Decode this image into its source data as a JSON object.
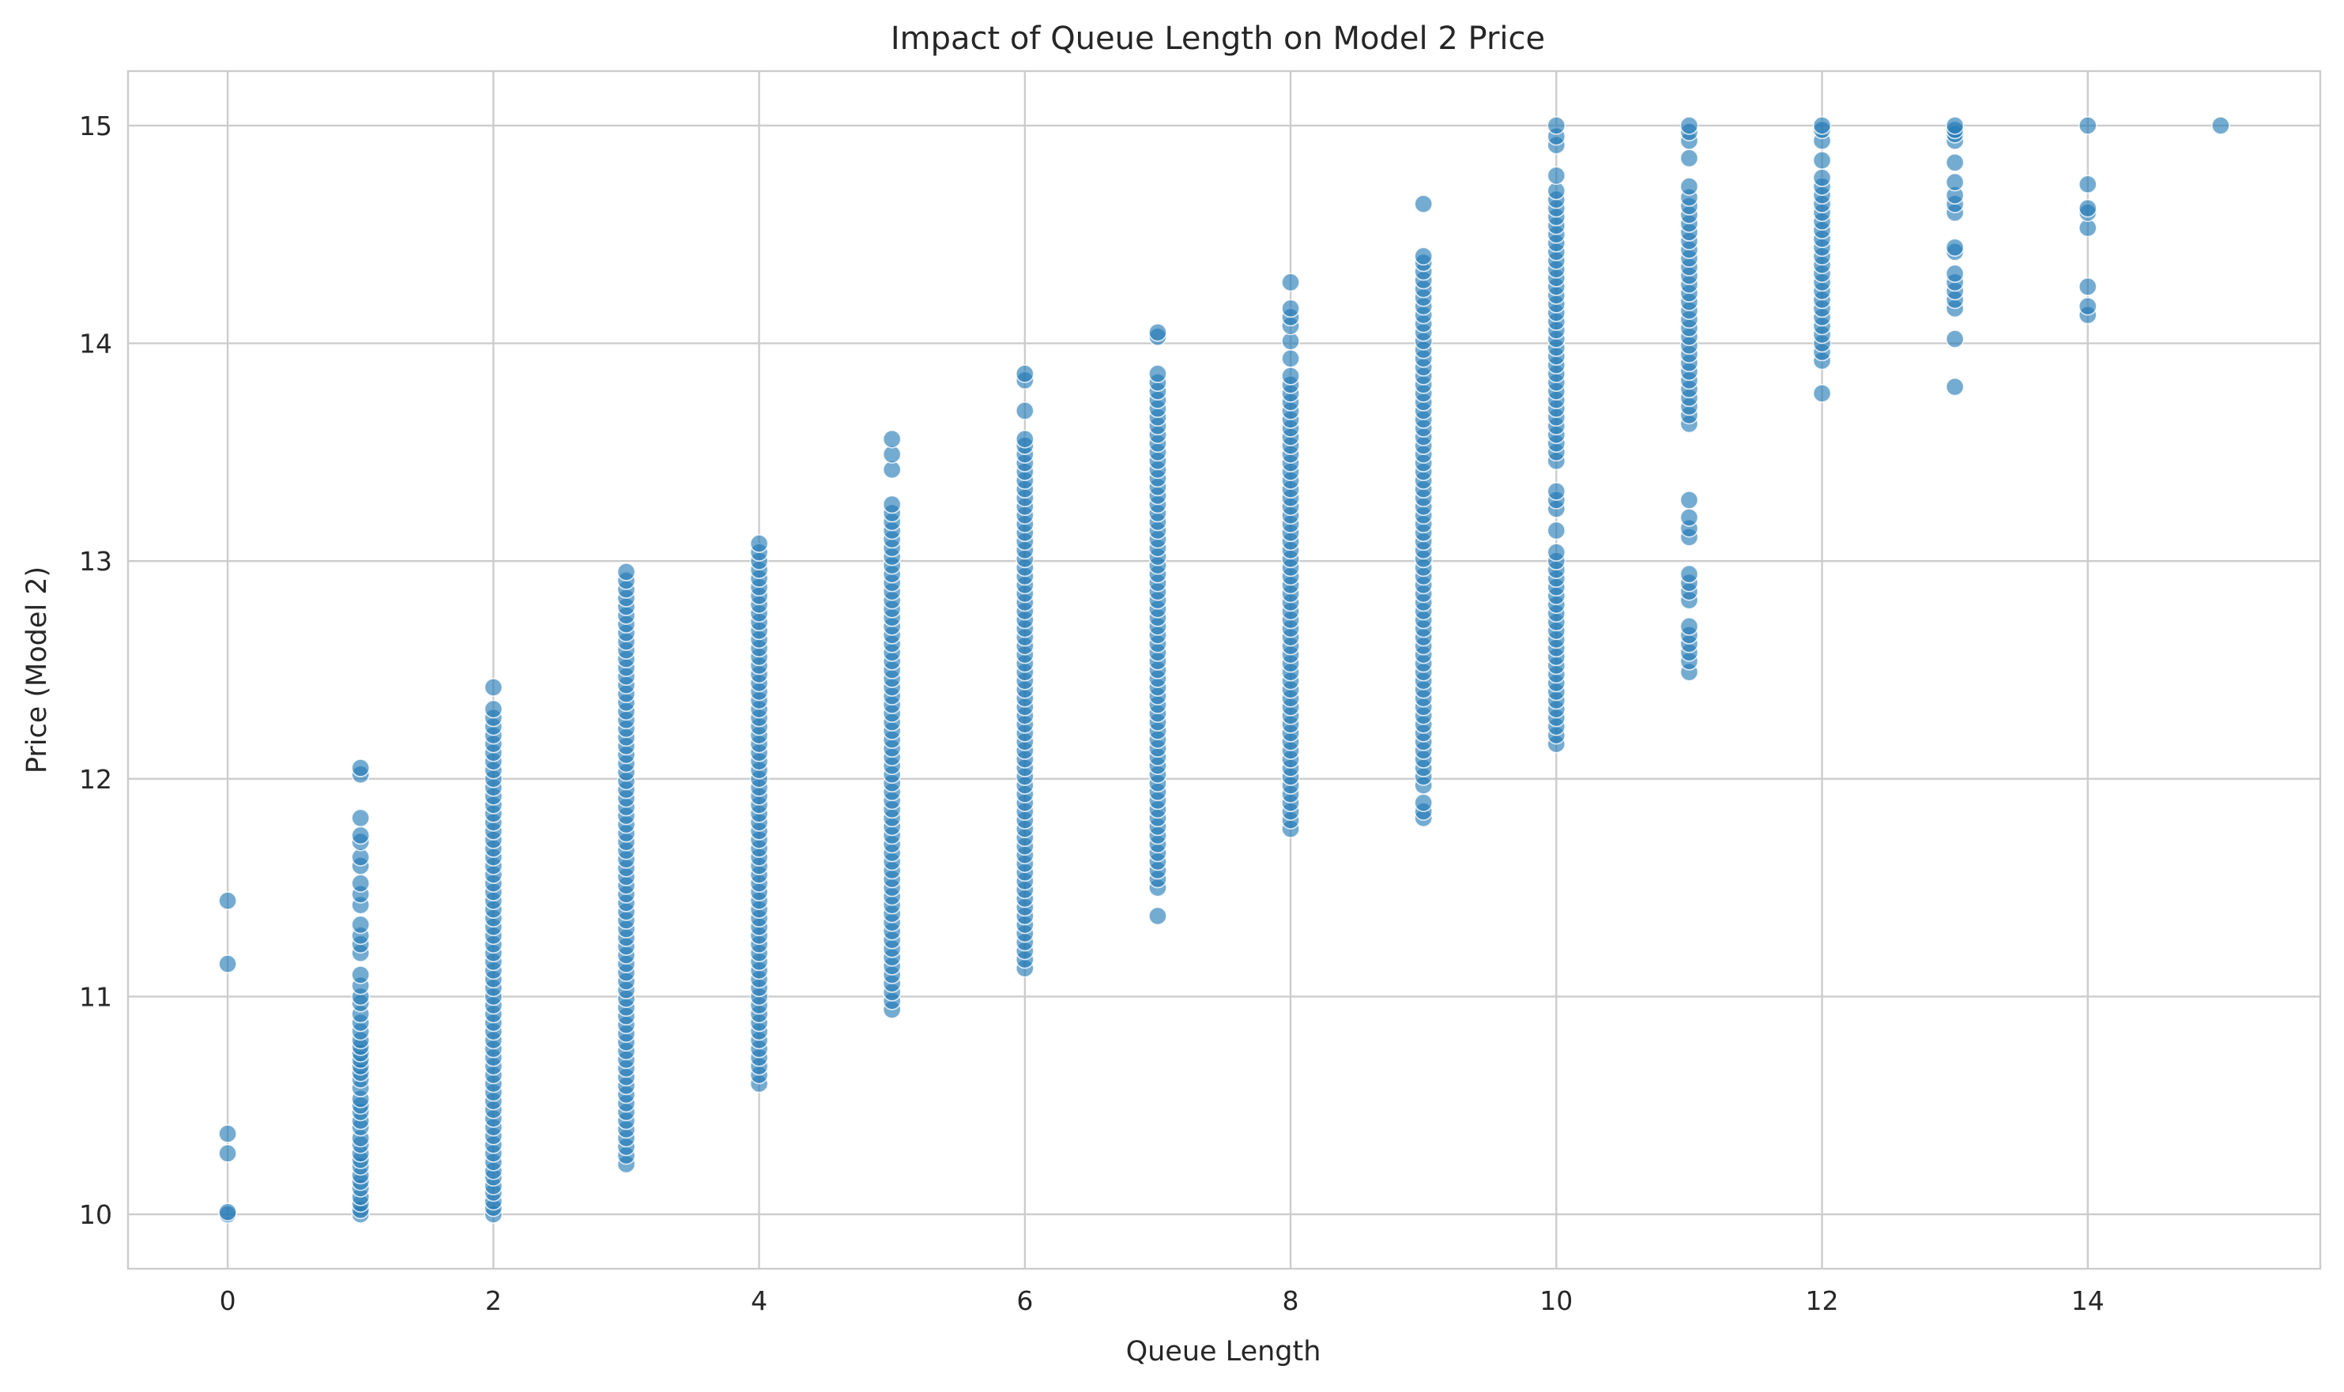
{
  "chart_data": {
    "type": "scatter",
    "title": "Impact of Queue Length on Model 2 Price",
    "xlabel": "Queue Length",
    "ylabel": "Price (Model 2)",
    "xlim": [
      -0.75,
      15.75
    ],
    "ylim": [
      9.75,
      15.25
    ],
    "xticks": [
      0,
      2,
      4,
      6,
      8,
      10,
      12,
      14
    ],
    "yticks": [
      10,
      11,
      12,
      13,
      14,
      15
    ],
    "grid": true,
    "marker_color": "#1f77b4",
    "series": [
      {
        "points_by_x": [
          {
            "x": 0,
            "y": [
              10.0,
              10.01,
              10.28,
              10.37,
              11.15,
              11.44
            ]
          },
          {
            "x": 1,
            "y": [
              10.0,
              10.02,
              10.05,
              10.08,
              10.12,
              10.15,
              10.18,
              10.22,
              10.25,
              10.28,
              10.32,
              10.35,
              10.4,
              10.43,
              10.47,
              10.5,
              10.53,
              10.58,
              10.62,
              10.65,
              10.68,
              10.71,
              10.74,
              10.77,
              10.8,
              10.84,
              10.88,
              10.92,
              10.97,
              11.0,
              11.05,
              11.1,
              11.2,
              11.24,
              11.28,
              11.33,
              11.42,
              11.47,
              11.52,
              11.6,
              11.64,
              11.71,
              11.74,
              11.82,
              12.02,
              12.05
            ]
          },
          {
            "x": 2,
            "y": [
              10.0,
              10.03,
              10.06,
              10.1,
              10.13,
              10.17,
              10.2,
              10.24,
              10.28,
              10.32,
              10.36,
              10.4,
              10.44,
              10.48,
              10.52,
              10.56,
              10.6,
              10.64,
              10.68,
              10.72,
              10.76,
              10.8,
              10.84,
              10.88,
              10.92,
              10.96,
              11.0,
              11.04,
              11.08,
              11.12,
              11.16,
              11.2,
              11.24,
              11.28,
              11.32,
              11.36,
              11.4,
              11.44,
              11.48,
              11.52,
              11.56,
              11.6,
              11.64,
              11.68,
              11.72,
              11.76,
              11.8,
              11.84,
              11.88,
              11.92,
              11.96,
              12.0,
              12.04,
              12.08,
              12.12,
              12.16,
              12.2,
              12.24,
              12.28,
              12.32,
              12.42
            ]
          },
          {
            "x": 3,
            "y": [
              10.23,
              10.27,
              10.31,
              10.35,
              10.39,
              10.43,
              10.47,
              10.51,
              10.55,
              10.59,
              10.63,
              10.67,
              10.71,
              10.75,
              10.79,
              10.83,
              10.87,
              10.91,
              10.95,
              10.99,
              11.03,
              11.07,
              11.11,
              11.15,
              11.19,
              11.23,
              11.27,
              11.31,
              11.35,
              11.39,
              11.43,
              11.47,
              11.51,
              11.55,
              11.59,
              11.63,
              11.67,
              11.71,
              11.75,
              11.79,
              11.83,
              11.87,
              11.91,
              11.95,
              11.99,
              12.03,
              12.07,
              12.11,
              12.15,
              12.19,
              12.23,
              12.27,
              12.31,
              12.35,
              12.39,
              12.43,
              12.47,
              12.51,
              12.55,
              12.59,
              12.63,
              12.67,
              12.71,
              12.75,
              12.79,
              12.83,
              12.87,
              12.91,
              12.95
            ]
          },
          {
            "x": 4,
            "y": [
              10.6,
              10.64,
              10.68,
              10.72,
              10.76,
              10.8,
              10.84,
              10.88,
              10.92,
              10.96,
              11.0,
              11.04,
              11.08,
              11.12,
              11.16,
              11.2,
              11.24,
              11.28,
              11.32,
              11.36,
              11.4,
              11.44,
              11.48,
              11.52,
              11.56,
              11.6,
              11.64,
              11.68,
              11.72,
              11.76,
              11.8,
              11.84,
              11.88,
              11.92,
              11.96,
              12.0,
              12.04,
              12.08,
              12.12,
              12.16,
              12.2,
              12.24,
              12.28,
              12.32,
              12.36,
              12.4,
              12.44,
              12.48,
              12.52,
              12.56,
              12.6,
              12.64,
              12.68,
              12.72,
              12.76,
              12.8,
              12.84,
              12.88,
              12.92,
              12.96,
              13.0,
              13.04,
              13.08
            ]
          },
          {
            "x": 5,
            "y": [
              10.94,
              10.98,
              11.02,
              11.06,
              11.1,
              11.14,
              11.18,
              11.22,
              11.26,
              11.3,
              11.34,
              11.38,
              11.42,
              11.46,
              11.5,
              11.54,
              11.58,
              11.62,
              11.66,
              11.7,
              11.74,
              11.78,
              11.82,
              11.86,
              11.9,
              11.94,
              11.98,
              12.02,
              12.06,
              12.1,
              12.14,
              12.18,
              12.22,
              12.26,
              12.3,
              12.34,
              12.38,
              12.42,
              12.46,
              12.5,
              12.54,
              12.58,
              12.62,
              12.66,
              12.7,
              12.74,
              12.78,
              12.82,
              12.86,
              12.9,
              12.94,
              12.98,
              13.02,
              13.06,
              13.1,
              13.14,
              13.18,
              13.22,
              13.26,
              13.42,
              13.49,
              13.56
            ]
          },
          {
            "x": 6,
            "y": [
              11.13,
              11.17,
              11.21,
              11.25,
              11.29,
              11.33,
              11.37,
              11.41,
              11.45,
              11.49,
              11.53,
              11.57,
              11.61,
              11.65,
              11.69,
              11.73,
              11.77,
              11.81,
              11.85,
              11.89,
              11.93,
              11.97,
              12.01,
              12.05,
              12.09,
              12.13,
              12.17,
              12.21,
              12.25,
              12.29,
              12.33,
              12.37,
              12.41,
              12.45,
              12.49,
              12.53,
              12.57,
              12.61,
              12.65,
              12.69,
              12.73,
              12.77,
              12.81,
              12.85,
              12.89,
              12.93,
              12.97,
              13.01,
              13.05,
              13.09,
              13.13,
              13.17,
              13.21,
              13.25,
              13.29,
              13.33,
              13.37,
              13.41,
              13.45,
              13.49,
              13.53,
              13.56,
              13.69,
              13.83,
              13.86
            ]
          },
          {
            "x": 7,
            "y": [
              11.37,
              11.5,
              11.54,
              11.58,
              11.62,
              11.66,
              11.7,
              11.74,
              11.78,
              11.82,
              11.86,
              11.9,
              11.94,
              11.98,
              12.02,
              12.06,
              12.1,
              12.14,
              12.18,
              12.22,
              12.26,
              12.3,
              12.34,
              12.38,
              12.42,
              12.46,
              12.5,
              12.54,
              12.58,
              12.62,
              12.66,
              12.7,
              12.74,
              12.78,
              12.82,
              12.86,
              12.9,
              12.94,
              12.98,
              13.02,
              13.06,
              13.1,
              13.14,
              13.18,
              13.22,
              13.26,
              13.3,
              13.34,
              13.38,
              13.42,
              13.46,
              13.5,
              13.54,
              13.58,
              13.62,
              13.66,
              13.7,
              13.74,
              13.78,
              13.82,
              13.86,
              14.03,
              14.05
            ]
          },
          {
            "x": 8,
            "y": [
              11.77,
              11.81,
              11.85,
              11.89,
              11.93,
              11.97,
              12.01,
              12.05,
              12.09,
              12.13,
              12.17,
              12.21,
              12.25,
              12.29,
              12.33,
              12.37,
              12.41,
              12.45,
              12.49,
              12.53,
              12.57,
              12.61,
              12.65,
              12.69,
              12.73,
              12.77,
              12.81,
              12.85,
              12.89,
              12.93,
              12.97,
              13.01,
              13.05,
              13.09,
              13.13,
              13.17,
              13.21,
              13.25,
              13.29,
              13.33,
              13.37,
              13.41,
              13.45,
              13.49,
              13.53,
              13.57,
              13.61,
              13.65,
              13.69,
              13.73,
              13.77,
              13.81,
              13.85,
              13.93,
              14.01,
              14.08,
              14.12,
              14.16,
              14.28
            ]
          },
          {
            "x": 9,
            "y": [
              11.82,
              11.85,
              11.89,
              11.97,
              12.01,
              12.05,
              12.09,
              12.13,
              12.17,
              12.21,
              12.25,
              12.29,
              12.33,
              12.37,
              12.41,
              12.45,
              12.49,
              12.53,
              12.57,
              12.61,
              12.65,
              12.69,
              12.73,
              12.77,
              12.81,
              12.85,
              12.89,
              12.93,
              12.97,
              13.01,
              13.05,
              13.09,
              13.13,
              13.17,
              13.21,
              13.25,
              13.29,
              13.33,
              13.37,
              13.41,
              13.45,
              13.49,
              13.53,
              13.57,
              13.61,
              13.65,
              13.69,
              13.73,
              13.77,
              13.81,
              13.85,
              13.89,
              13.93,
              13.97,
              14.01,
              14.05,
              14.09,
              14.13,
              14.17,
              14.21,
              14.25,
              14.29,
              14.33,
              14.37,
              14.4,
              14.64
            ]
          },
          {
            "x": 10,
            "y": [
              12.16,
              12.2,
              12.24,
              12.28,
              12.32,
              12.36,
              12.4,
              12.44,
              12.48,
              12.52,
              12.56,
              12.6,
              12.64,
              12.68,
              12.72,
              12.76,
              12.8,
              12.84,
              12.88,
              12.92,
              12.96,
              13.0,
              13.04,
              13.14,
              13.24,
              13.28,
              13.32,
              13.46,
              13.5,
              13.54,
              13.58,
              13.62,
              13.66,
              13.7,
              13.74,
              13.78,
              13.82,
              13.86,
              13.9,
              13.94,
              13.98,
              14.02,
              14.06,
              14.1,
              14.14,
              14.18,
              14.22,
              14.26,
              14.3,
              14.34,
              14.38,
              14.42,
              14.46,
              14.5,
              14.54,
              14.58,
              14.62,
              14.66,
              14.7,
              14.77,
              14.91,
              14.95,
              15.0
            ]
          },
          {
            "x": 11,
            "y": [
              12.49,
              12.54,
              12.58,
              12.62,
              12.66,
              12.7,
              12.82,
              12.86,
              12.9,
              12.94,
              13.11,
              13.15,
              13.2,
              13.28,
              13.63,
              13.67,
              13.71,
              13.75,
              13.79,
              13.83,
              13.87,
              13.91,
              13.95,
              13.99,
              14.03,
              14.07,
              14.11,
              14.15,
              14.19,
              14.23,
              14.27,
              14.31,
              14.35,
              14.39,
              14.43,
              14.47,
              14.51,
              14.55,
              14.59,
              14.63,
              14.67,
              14.72,
              14.85,
              14.93,
              14.97,
              15.0
            ]
          },
          {
            "x": 12,
            "y": [
              13.77,
              13.92,
              13.96,
              14.0,
              14.04,
              14.08,
              14.12,
              14.16,
              14.2,
              14.24,
              14.28,
              14.32,
              14.36,
              14.4,
              14.44,
              14.48,
              14.52,
              14.56,
              14.6,
              14.64,
              14.68,
              14.72,
              14.76,
              14.84,
              14.93,
              14.98,
              15.0
            ]
          },
          {
            "x": 13,
            "y": [
              13.8,
              14.02,
              14.16,
              14.2,
              14.24,
              14.28,
              14.32,
              14.42,
              14.44,
              14.6,
              14.64,
              14.68,
              14.74,
              14.83,
              14.93,
              14.96,
              14.98,
              15.0
            ]
          },
          {
            "x": 14,
            "y": [
              14.13,
              14.17,
              14.26,
              14.53,
              14.6,
              14.62,
              14.73,
              15.0
            ]
          },
          {
            "x": 15,
            "y": [
              15.0
            ]
          }
        ]
      }
    ]
  }
}
